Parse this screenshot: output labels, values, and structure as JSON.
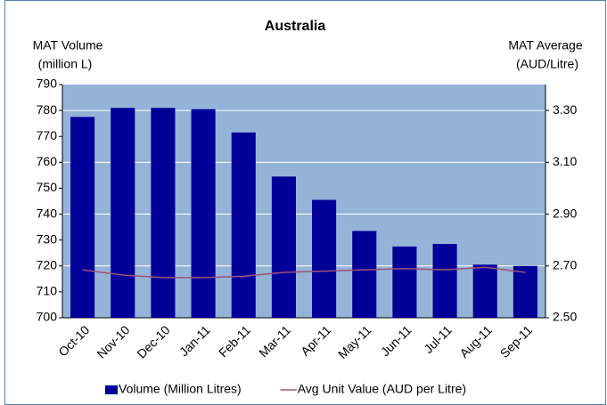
{
  "chart_data": {
    "type": "bar-line",
    "title": "Australia",
    "y_label": [
      "MAT Volume",
      "(million L)"
    ],
    "y2_label": [
      "MAT Average",
      "(AUD/Litre)"
    ],
    "categories": [
      "Oct-10",
      "Nov-10",
      "Dec-10",
      "Jan-11",
      "Feb-11",
      "Mar-11",
      "Apr-11",
      "May-11",
      "Jun-11",
      "Jul-11",
      "Aug-11",
      "Sep-11"
    ],
    "series": [
      {
        "name": "Volume (Million Litres)",
        "type": "bar",
        "color": "#000099",
        "values": [
          777.5,
          781,
          781,
          780.5,
          771.5,
          754.5,
          745.5,
          733.5,
          727.5,
          728.5,
          720.5,
          720
        ]
      },
      {
        "name": "Avg Unit Value (AUD per Litre)",
        "type": "line",
        "axis": "y2",
        "color": "#a0527a",
        "values": [
          2.685,
          2.665,
          2.655,
          2.655,
          2.66,
          2.675,
          2.68,
          2.685,
          2.69,
          2.685,
          2.695,
          2.675
        ]
      }
    ],
    "ylim": [
      700,
      790
    ],
    "yticks": [
      700,
      710,
      720,
      730,
      740,
      750,
      760,
      770,
      780,
      790
    ],
    "y2lim": [
      2.5,
      3.4
    ],
    "y2ticks": [
      {
        "value": 2.5,
        "label": "2.50"
      },
      {
        "value": 2.7,
        "label": "2.70"
      },
      {
        "value": 2.9,
        "label": "2.90"
      },
      {
        "value": 3.1,
        "label": "3.10"
      },
      {
        "value": 3.3,
        "label": "3.30"
      }
    ],
    "grid": true,
    "legend": "bottom"
  }
}
